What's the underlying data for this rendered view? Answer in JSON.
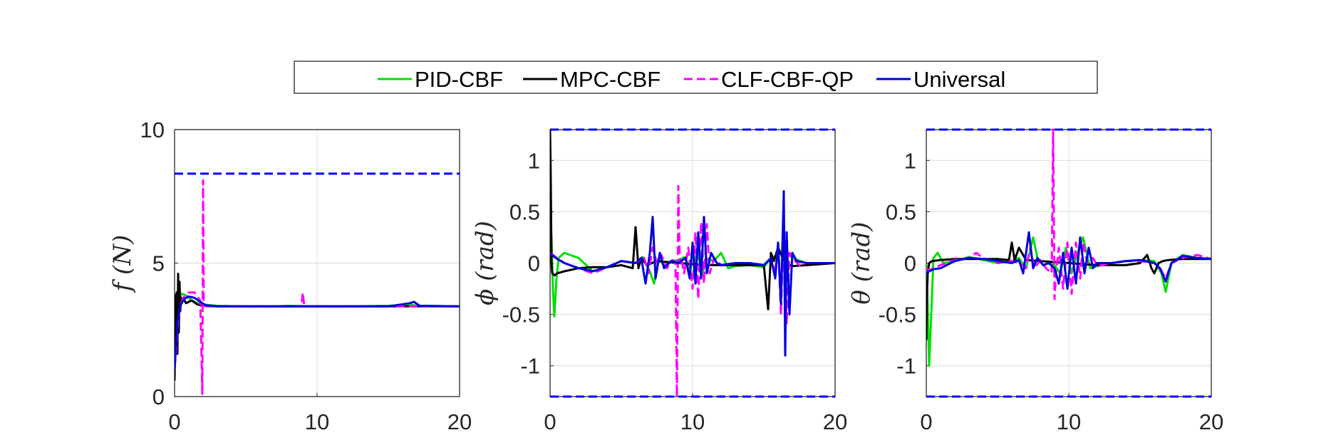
{
  "chart_data": [
    {
      "type": "line",
      "ylabel": "f  (N)",
      "xlim": [
        0,
        20
      ],
      "ylim": [
        0,
        10
      ],
      "xticks": [
        "0",
        "10",
        "20"
      ],
      "xtick_values": [
        0,
        10,
        20
      ],
      "yticks": [
        "0",
        "5",
        "10"
      ],
      "ytick_values": [
        0,
        5,
        10
      ],
      "grid": true,
      "bounds": [
        {
          "name": "upper-bound",
          "y": 8.35,
          "color": "#0000ff",
          "dash": true
        }
      ],
      "series": [
        {
          "key": "pid",
          "color": "#00e000",
          "dash": false,
          "x": [
            0,
            0.1,
            0.2,
            0.35,
            0.5,
            0.8,
            1.2,
            1.6,
            2.0,
            3,
            5,
            7,
            8,
            10,
            12,
            15,
            16.5,
            17,
            20
          ],
          "y": [
            0.9,
            2.2,
            3.2,
            3.7,
            3.85,
            3.8,
            3.6,
            3.5,
            3.45,
            3.4,
            3.38,
            3.38,
            3.4,
            3.38,
            3.38,
            3.4,
            3.45,
            3.4,
            3.38
          ]
        },
        {
          "key": "mpc",
          "color": "#000000",
          "dash": false,
          "x": [
            0,
            0.05,
            0.1,
            0.15,
            0.2,
            0.25,
            0.3,
            0.35,
            0.4,
            0.45,
            0.5,
            0.6,
            0.8,
            1.2,
            1.6,
            2.0,
            3,
            5,
            8,
            10,
            12,
            15,
            20
          ],
          "y": [
            0.6,
            3.8,
            2.0,
            3.9,
            1.6,
            4.6,
            2.4,
            4.3,
            3.2,
            3.7,
            3.5,
            3.7,
            3.5,
            3.6,
            3.45,
            3.4,
            3.38,
            3.38,
            3.38,
            3.38,
            3.38,
            3.38,
            3.38
          ]
        },
        {
          "key": "clf",
          "color": "#ff00ff",
          "dash": true,
          "x": [
            0,
            0.1,
            0.2,
            0.4,
            0.6,
            1.0,
            1.4,
            1.8,
            1.95,
            2.0,
            2.05,
            2.1,
            2.2,
            3,
            5,
            8.9,
            9.0,
            9.1,
            9.2,
            12,
            15,
            20
          ],
          "y": [
            1.1,
            1.6,
            2.6,
            3.4,
            3.7,
            3.9,
            3.9,
            3.6,
            0.1,
            8.1,
            3.4,
            3.4,
            3.38,
            3.38,
            3.38,
            3.38,
            3.9,
            3.38,
            3.38,
            3.38,
            3.38,
            3.38
          ]
        },
        {
          "key": "universal",
          "color": "#0000dd",
          "dash": false,
          "x": [
            0,
            0.1,
            0.2,
            0.4,
            0.6,
            0.8,
            1.0,
            1.4,
            1.8,
            2.2,
            3,
            5,
            8,
            10,
            12,
            15,
            16.5,
            16.8,
            17.2,
            20
          ],
          "y": [
            1.0,
            1.9,
            2.8,
            3.4,
            3.6,
            3.7,
            3.75,
            3.7,
            3.55,
            3.42,
            3.38,
            3.38,
            3.38,
            3.38,
            3.38,
            3.38,
            3.5,
            3.55,
            3.4,
            3.38
          ]
        }
      ]
    },
    {
      "type": "line",
      "ylabel": "ϕ  (rad)",
      "xlim": [
        0,
        20
      ],
      "ylim": [
        -1.3,
        1.3
      ],
      "xticks": [
        "0",
        "10",
        "20"
      ],
      "xtick_values": [
        0,
        10,
        20
      ],
      "yticks": [
        "-1",
        "-0.5",
        "0",
        "0.5",
        "1"
      ],
      "ytick_values": [
        -1,
        -0.5,
        0,
        0.5,
        1
      ],
      "grid": true,
      "bounds": [
        {
          "name": "upper-bound",
          "y": 1.3,
          "color": "#0000ff",
          "dash": true
        },
        {
          "name": "lower-bound",
          "y": -1.3,
          "color": "#0000ff",
          "dash": true
        }
      ],
      "series": [
        {
          "key": "pid",
          "color": "#00e000",
          "dash": false,
          "x": [
            0,
            0.1,
            0.2,
            0.3,
            0.45,
            0.6,
            1,
            2,
            3,
            4,
            5,
            6,
            6.5,
            7,
            7.3,
            7.6,
            8,
            8.5,
            9,
            9.5,
            10,
            10.3,
            10.7,
            11,
            11.5,
            12,
            12.5,
            13,
            14,
            15,
            15.5,
            16,
            16.5,
            17,
            18,
            20
          ],
          "y": [
            0.45,
            0.25,
            -0.25,
            -0.52,
            -0.15,
            0.05,
            0.1,
            0.05,
            -0.08,
            -0.04,
            0.02,
            0.0,
            0.06,
            -0.08,
            -0.2,
            0.04,
            -0.02,
            0.02,
            0.03,
            0.06,
            -0.15,
            0.12,
            -0.1,
            0.04,
            0.02,
            0.1,
            -0.05,
            -0.03,
            -0.02,
            -0.04,
            0.05,
            0.08,
            0.12,
            0.05,
            0.0,
            0.0
          ]
        },
        {
          "key": "mpc",
          "color": "#000000",
          "dash": false,
          "x": [
            0,
            0.05,
            0.1,
            0.15,
            0.3,
            0.5,
            1,
            2,
            3,
            4,
            5,
            5.8,
            6.0,
            6.2,
            6.4,
            6.8,
            7.5,
            9,
            11,
            13,
            14,
            15,
            15.3,
            15.5,
            15.7,
            16,
            16.5,
            17,
            18,
            20
          ],
          "y": [
            1.3,
            0.8,
            0.0,
            -0.1,
            -0.12,
            -0.1,
            -0.08,
            -0.05,
            -0.04,
            -0.04,
            -0.02,
            -0.05,
            0.35,
            -0.05,
            0.05,
            -0.02,
            0.02,
            0.0,
            -0.02,
            -0.02,
            -0.02,
            -0.02,
            -0.45,
            0.1,
            0.02,
            0.15,
            0.0,
            -0.03,
            -0.02,
            0.0
          ]
        },
        {
          "key": "clf",
          "color": "#ff00ff",
          "dash": true,
          "x": [
            0,
            0.2,
            0.5,
            1,
            2,
            3,
            4,
            5,
            6,
            6.6,
            6.9,
            7.2,
            7.5,
            7.8,
            8.2,
            8.6,
            8.8,
            8.9,
            9.0,
            9.1,
            9.2,
            9.4,
            9.7,
            10,
            10.2,
            10.4,
            10.6,
            10.8,
            11.0,
            11.2,
            11.5,
            12,
            13,
            14,
            15,
            15.5,
            15.8,
            16.0,
            16.2,
            16.4,
            16.6,
            16.8,
            17.0,
            17.5,
            18,
            20
          ],
          "y": [
            0.1,
            0.08,
            0.05,
            0.0,
            -0.05,
            -0.1,
            -0.04,
            0.02,
            0.0,
            0.05,
            -0.1,
            0.15,
            0.0,
            0.08,
            -0.05,
            0.03,
            0.0,
            -1.3,
            0.75,
            0.0,
            0.05,
            -0.1,
            0.15,
            -0.25,
            0.3,
            -0.35,
            0.4,
            -0.2,
            0.38,
            -0.1,
            0.05,
            -0.02,
            0.0,
            0.0,
            -0.02,
            0.05,
            -0.1,
            0.2,
            -0.5,
            0.45,
            -0.6,
            0.1,
            0.05,
            -0.02,
            0.0,
            0.0
          ]
        },
        {
          "key": "universal",
          "color": "#0000dd",
          "dash": false,
          "x": [
            0,
            0.2,
            0.5,
            1,
            2,
            3,
            4,
            5,
            6,
            6.4,
            6.7,
            7.0,
            7.2,
            7.4,
            7.7,
            8.0,
            8.5,
            9.0,
            9.5,
            9.8,
            10.0,
            10.2,
            10.4,
            10.6,
            10.8,
            11.0,
            11.3,
            11.7,
            12,
            13,
            14,
            15,
            15.5,
            15.8,
            16.0,
            16.2,
            16.4,
            16.5,
            16.6,
            16.8,
            17.0,
            17.3,
            18,
            20
          ],
          "y": [
            0.1,
            0.07,
            0.04,
            0.0,
            -0.05,
            -0.08,
            -0.04,
            0.02,
            0.0,
            0.05,
            -0.2,
            0.1,
            0.45,
            -0.15,
            0.1,
            -0.05,
            0.02,
            0.0,
            0.05,
            -0.15,
            0.2,
            -0.2,
            0.3,
            -0.15,
            0.45,
            -0.1,
            0.1,
            0.0,
            -0.02,
            0.0,
            0.0,
            -0.02,
            0.05,
            -0.15,
            0.2,
            -0.4,
            0.7,
            -0.9,
            0.3,
            -0.5,
            0.1,
            0.02,
            0.0,
            0.0
          ]
        }
      ]
    },
    {
      "type": "line",
      "ylabel": "θ  (rad)",
      "xlim": [
        0,
        20
      ],
      "ylim": [
        -1.3,
        1.3
      ],
      "xticks": [
        "0",
        "10",
        "20"
      ],
      "xtick_values": [
        0,
        10,
        20
      ],
      "yticks": [
        "-1",
        "-0.5",
        "0",
        "0.5",
        "1"
      ],
      "ytick_values": [
        -1,
        -0.5,
        0,
        0.5,
        1
      ],
      "grid": true,
      "bounds": [
        {
          "name": "upper-bound",
          "y": 1.3,
          "color": "#0000ff",
          "dash": true
        },
        {
          "name": "lower-bound",
          "y": -1.3,
          "color": "#0000ff",
          "dash": true
        }
      ],
      "series": [
        {
          "key": "pid",
          "color": "#00e000",
          "dash": false,
          "x": [
            0,
            0.1,
            0.2,
            0.35,
            0.5,
            0.8,
            1.2,
            2,
            3,
            4,
            5,
            6,
            6.5,
            7,
            7.5,
            7.8,
            8.2,
            8.6,
            9,
            9.4,
            9.8,
            10.2,
            10.6,
            11,
            11.5,
            12,
            13,
            14,
            15,
            16,
            16.5,
            16.8,
            17.2,
            18,
            19,
            20
          ],
          "y": [
            0.0,
            -0.4,
            -1.0,
            -0.5,
            0.05,
            0.1,
            0.0,
            0.02,
            0.06,
            0.03,
            0.0,
            0.02,
            0.05,
            -0.05,
            0.25,
            0.05,
            -0.02,
            0.0,
            -0.02,
            -0.1,
            0.15,
            -0.1,
            0.1,
            0.25,
            -0.05,
            -0.03,
            0.0,
            0.02,
            0.03,
            0.02,
            -0.1,
            -0.28,
            0.0,
            0.08,
            0.05,
            0.04
          ]
        },
        {
          "key": "mpc",
          "color": "#000000",
          "dash": false,
          "x": [
            0,
            0.05,
            0.1,
            0.2,
            0.4,
            1,
            2,
            4,
            5,
            5.8,
            6.0,
            6.2,
            6.5,
            7,
            8,
            10,
            12,
            14,
            15,
            15.5,
            15.8,
            16.0,
            16.3,
            16.6,
            17,
            18,
            20
          ],
          "y": [
            -0.75,
            -0.3,
            -0.1,
            0.0,
            0.02,
            0.03,
            0.04,
            0.04,
            0.04,
            0.03,
            0.2,
            0.03,
            0.15,
            0.03,
            0.02,
            0.0,
            -0.02,
            -0.02,
            0.0,
            0.08,
            -0.05,
            -0.1,
            0.0,
            0.02,
            0.03,
            0.04,
            0.04
          ]
        },
        {
          "key": "clf",
          "color": "#ff00ff",
          "dash": true,
          "x": [
            0,
            0.2,
            0.5,
            1,
            2,
            3,
            3.5,
            4,
            5,
            6,
            6.6,
            7,
            7.3,
            7.6,
            8,
            8.4,
            8.8,
            8.9,
            9.0,
            9.1,
            9.3,
            9.6,
            9.9,
            10.2,
            10.5,
            10.8,
            11.0,
            11.3,
            11.7,
            12,
            13,
            14,
            15,
            16,
            16.4,
            16.8,
            17.2,
            18,
            19,
            20
          ],
          "y": [
            -0.05,
            -0.07,
            -0.05,
            -0.02,
            0.03,
            0.05,
            0.1,
            0.05,
            0.0,
            0.02,
            0.0,
            -0.05,
            0.15,
            -0.05,
            0.03,
            -0.05,
            -0.1,
            1.3,
            -0.35,
            -0.1,
            0.15,
            -0.25,
            0.2,
            -0.3,
            0.2,
            -0.15,
            0.2,
            0.0,
            0.05,
            -0.03,
            0.0,
            0.02,
            0.02,
            0.0,
            -0.05,
            -0.15,
            0.0,
            0.05,
            0.08,
            0.04
          ]
        },
        {
          "key": "universal",
          "color": "#0000dd",
          "dash": false,
          "x": [
            0,
            0.2,
            0.5,
            1,
            2,
            3,
            4,
            5,
            6,
            6.5,
            6.8,
            7.0,
            7.2,
            7.5,
            7.8,
            8.2,
            8.6,
            9,
            9.3,
            9.6,
            9.9,
            10.2,
            10.5,
            10.8,
            11.1,
            11.4,
            11.7,
            12,
            13,
            14,
            15,
            16,
            16.4,
            16.8,
            17.2,
            18,
            19,
            20
          ],
          "y": [
            -0.1,
            -0.08,
            -0.06,
            -0.05,
            0.02,
            0.05,
            0.04,
            0.02,
            0.0,
            0.03,
            -0.1,
            0.1,
            0.3,
            -0.05,
            0.05,
            -0.02,
            0.0,
            -0.05,
            -0.2,
            0.1,
            -0.25,
            0.15,
            -0.2,
            0.25,
            -0.1,
            0.15,
            -0.05,
            0.0,
            0.0,
            0.02,
            0.03,
            0.0,
            -0.05,
            -0.18,
            0.0,
            0.07,
            0.05,
            0.04
          ]
        }
      ]
    }
  ],
  "legend": {
    "placement": "top",
    "entries": [
      {
        "key": "pid",
        "label": "PID-CBF",
        "color": "#00e000",
        "dash": false
      },
      {
        "key": "mpc",
        "label": "MPC-CBF",
        "color": "#000000",
        "dash": false
      },
      {
        "key": "clf",
        "label": "CLF-CBF-QP",
        "color": "#ff00ff",
        "dash": true
      },
      {
        "key": "universal",
        "label": "Universal",
        "color": "#0000dd",
        "dash": false
      }
    ]
  }
}
